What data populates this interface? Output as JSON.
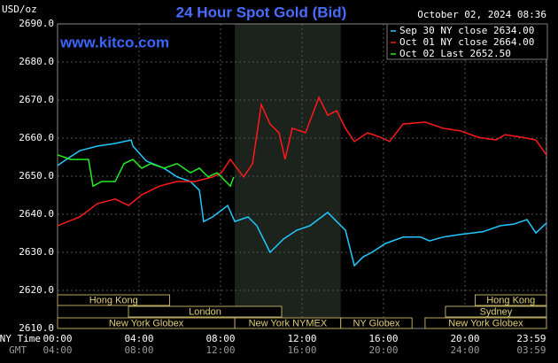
{
  "chart_data": {
    "type": "line",
    "title": "24 Hour Spot Gold (Bid)",
    "date": "October 02, 2024 08:36",
    "site": "www.kitco.com",
    "ylabel": "USD/oz",
    "xlabel": "NY Time",
    "x2label": "GMT",
    "xlim": [
      0,
      24
    ],
    "ylim": [
      2610,
      2690
    ],
    "grid": true,
    "yticks": [
      {
        "value": 2610,
        "label": "2610.0"
      },
      {
        "value": 2620,
        "label": "2620.0"
      },
      {
        "value": 2630,
        "label": "2630.0"
      },
      {
        "value": 2640,
        "label": "2640.0"
      },
      {
        "value": 2650,
        "label": "2650.0"
      },
      {
        "value": 2660,
        "label": "2660.0"
      },
      {
        "value": 2670,
        "label": "2670.0"
      },
      {
        "value": 2680,
        "label": "2680.0"
      },
      {
        "value": 2690,
        "label": "2690.0"
      }
    ],
    "xticks": [
      {
        "value": 0,
        "label": "00:00"
      },
      {
        "value": 4,
        "label": "04:00"
      },
      {
        "value": 8,
        "label": "08:00"
      },
      {
        "value": 12,
        "label": "12:00"
      },
      {
        "value": 16,
        "label": "16:00"
      },
      {
        "value": 20,
        "label": "20:00"
      },
      {
        "value": 23.98,
        "label": "23:59"
      }
    ],
    "gmt_labels": [
      "04:00",
      "08:00",
      "12:00",
      "16:00",
      "20:00",
      "24:00",
      "03:59"
    ],
    "session_rows": [
      [
        {
          "label": "Hong Kong",
          "start": 0,
          "end": 5.5
        },
        {
          "label": "Hong Kong",
          "start": 20.5,
          "end": 24
        }
      ],
      [
        {
          "label": "London",
          "start": 3.48,
          "end": 11.0
        },
        {
          "label": "Sydney",
          "start": 19.04,
          "end": 24
        }
      ],
      [
        {
          "label": "New York Globex",
          "start": 0,
          "end": 8.7
        },
        {
          "label": "New York NYMEX",
          "start": 8.7,
          "end": 13.9
        },
        {
          "label": "NY Globex",
          "start": 13.9,
          "end": 17.4
        },
        {
          "label": "New York Globex",
          "start": 18.04,
          "end": 24
        }
      ]
    ],
    "shade_session": "New York NYMEX",
    "series": [
      {
        "name": "Sep 30 NY close 2634.00",
        "color": "#22c8ff",
        "x": [
          0,
          0.43,
          1.09,
          1.96,
          2.83,
          3.61,
          3.7,
          4.35,
          5.22,
          5.87,
          6.52,
          6.96,
          7.17,
          7.61,
          8.35,
          8.7,
          9.35,
          9.78,
          10.22,
          10.43,
          11.09,
          11.74,
          12.39,
          13.26,
          13.7,
          14.13,
          14.57,
          15.0,
          15.43,
          16.09,
          16.96,
          17.83,
          18.26,
          18.91,
          19.78,
          20.87,
          21.74,
          22.39,
          23.04,
          23.48,
          24.0
        ],
        "values": [
          2652.8,
          2654.4,
          2656.7,
          2657.9,
          2658.6,
          2659.5,
          2657.9,
          2654.0,
          2652.1,
          2649.8,
          2648.6,
          2646.3,
          2638.1,
          2639.3,
          2642.3,
          2638.1,
          2639.3,
          2637.0,
          2632.3,
          2630.0,
          2633.5,
          2635.8,
          2637.0,
          2640.5,
          2638.1,
          2635.8,
          2626.5,
          2628.8,
          2630.0,
          2632.3,
          2634.0,
          2634.0,
          2633.0,
          2634.0,
          2634.7,
          2635.4,
          2637.0,
          2637.4,
          2638.6,
          2635.1,
          2637.7
        ]
      },
      {
        "name": "Oct 01 NY close 2664.00",
        "color": "#ff1a1a",
        "x": [
          0,
          1.09,
          1.96,
          2.83,
          3.48,
          4.13,
          5.0,
          5.87,
          6.74,
          7.61,
          8.04,
          8.48,
          9.13,
          9.57,
          10.0,
          10.43,
          10.87,
          11.17,
          11.52,
          12.17,
          12.83,
          13.26,
          13.7,
          14.13,
          14.57,
          15.22,
          15.87,
          16.3,
          16.96,
          18.04,
          18.91,
          19.78,
          20.65,
          21.52,
          21.96,
          22.83,
          23.48,
          24.0
        ],
        "values": [
          2637.0,
          2639.3,
          2642.8,
          2644.0,
          2642.3,
          2645.1,
          2647.4,
          2648.6,
          2648.6,
          2649.8,
          2650.9,
          2654.4,
          2649.8,
          2653.3,
          2668.8,
          2663.7,
          2661.4,
          2654.4,
          2662.6,
          2661.4,
          2670.7,
          2666.0,
          2667.2,
          2662.6,
          2659.1,
          2661.4,
          2660.2,
          2659.1,
          2663.7,
          2664.2,
          2662.6,
          2661.9,
          2660.2,
          2659.5,
          2660.9,
          2660.2,
          2659.5,
          2655.6
        ]
      },
      {
        "name": "Oct 02 Last 2652.50",
        "color": "#22ee22",
        "x": [
          0,
          0.65,
          1.52,
          1.74,
          2.17,
          2.83,
          3.26,
          3.7,
          4.13,
          4.57,
          5.22,
          5.87,
          6.52,
          6.96,
          7.39,
          7.83,
          8.26,
          8.48,
          8.65
        ],
        "values": [
          2655.6,
          2654.4,
          2654.4,
          2647.4,
          2648.6,
          2648.6,
          2653.3,
          2654.4,
          2652.1,
          2653.3,
          2652.1,
          2653.3,
          2650.9,
          2652.1,
          2649.8,
          2650.9,
          2648.6,
          2647.4,
          2649.8
        ]
      }
    ]
  }
}
